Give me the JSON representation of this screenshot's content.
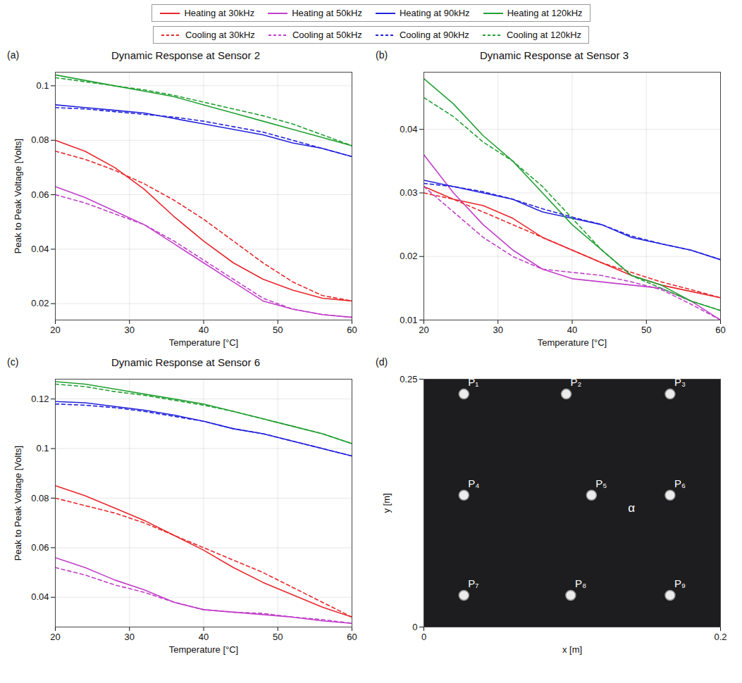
{
  "chart_data": [
    {
      "type": "line",
      "panel": "(a)",
      "title": "Dynamic Response at Sensor 2",
      "legend": "top",
      "xlabel": "Temperature [°C]",
      "ylabel": "Peak to Peak Voltage [Volts]",
      "grid": true,
      "x": [
        20,
        24,
        28,
        32,
        36,
        40,
        44,
        48,
        52,
        56,
        60
      ],
      "xlim": [
        20,
        60
      ],
      "xticks": [
        20,
        30,
        40,
        50,
        60
      ],
      "ylim": [
        0.014,
        0.105
      ],
      "yticks": [
        0.02,
        0.04,
        0.06,
        0.08,
        0.1
      ],
      "series": [
        {
          "name": "Heating at 30kHz",
          "color": "#e8262a",
          "line_style": "solid",
          "values": [
            0.08,
            0.076,
            0.07,
            0.062,
            0.052,
            0.043,
            0.035,
            0.029,
            0.025,
            0.022,
            0.021
          ]
        },
        {
          "name": "Heating at 50kHz",
          "color": "#c13fc9",
          "line_style": "solid",
          "values": [
            0.063,
            0.059,
            0.054,
            0.049,
            0.042,
            0.035,
            0.028,
            0.021,
            0.018,
            0.016,
            0.015
          ]
        },
        {
          "name": "Heating at 90kHz",
          "color": "#2222dd",
          "line_style": "solid",
          "values": [
            0.093,
            0.092,
            0.091,
            0.09,
            0.088,
            0.086,
            0.084,
            0.082,
            0.079,
            0.077,
            0.074
          ]
        },
        {
          "name": "Heating at 120kHz",
          "color": "#22a033",
          "line_style": "solid",
          "values": [
            0.104,
            0.102,
            0.1,
            0.098,
            0.096,
            0.093,
            0.09,
            0.087,
            0.084,
            0.081,
            0.078
          ]
        },
        {
          "name": "Cooling at 30kHz",
          "color": "#e8262a",
          "line_style": "dashed",
          "values": [
            0.076,
            0.073,
            0.069,
            0.064,
            0.058,
            0.051,
            0.043,
            0.035,
            0.028,
            0.023,
            0.021
          ]
        },
        {
          "name": "Cooling at 50kHz",
          "color": "#c13fc9",
          "line_style": "dashed",
          "values": [
            0.06,
            0.057,
            0.053,
            0.049,
            0.043,
            0.036,
            0.029,
            0.022,
            0.018,
            0.016,
            0.015
          ]
        },
        {
          "name": "Cooling at 90kHz",
          "color": "#2222dd",
          "line_style": "dashed",
          "values": [
            0.092,
            0.0915,
            0.0905,
            0.0895,
            0.0885,
            0.087,
            0.085,
            0.083,
            0.08,
            0.077,
            0.074
          ]
        },
        {
          "name": "Cooling at 120kHz",
          "color": "#22a033",
          "line_style": "dashed",
          "values": [
            0.103,
            0.1015,
            0.1,
            0.0985,
            0.0965,
            0.094,
            0.0915,
            0.089,
            0.086,
            0.082,
            0.078
          ]
        }
      ]
    },
    {
      "type": "line",
      "panel": "(b)",
      "title": "Dynamic Response at Sensor 3",
      "xlabel": "Temperature [°C]",
      "grid": true,
      "x": [
        20,
        24,
        28,
        32,
        36,
        40,
        44,
        48,
        52,
        56,
        60
      ],
      "xlim": [
        20,
        60
      ],
      "xticks": [
        20,
        30,
        40,
        50,
        60
      ],
      "ylim": [
        0.01,
        0.049
      ],
      "yticks": [
        0.01,
        0.02,
        0.03,
        0.04
      ],
      "series": [
        {
          "name": "Heating at 30kHz",
          "color": "#e8262a",
          "line_style": "solid",
          "values": [
            0.031,
            0.029,
            0.028,
            0.026,
            0.023,
            0.021,
            0.019,
            0.017,
            0.0155,
            0.0145,
            0.0135
          ]
        },
        {
          "name": "Heating at 50kHz",
          "color": "#c13fc9",
          "line_style": "solid",
          "values": [
            0.036,
            0.03,
            0.025,
            0.021,
            0.018,
            0.0165,
            0.016,
            0.0155,
            0.015,
            0.013,
            0.01
          ]
        },
        {
          "name": "Heating at 90kHz",
          "color": "#2222dd",
          "line_style": "solid",
          "values": [
            0.032,
            0.031,
            0.03,
            0.029,
            0.027,
            0.026,
            0.025,
            0.023,
            0.022,
            0.021,
            0.0195
          ]
        },
        {
          "name": "Heating at 120kHz",
          "color": "#22a033",
          "line_style": "solid",
          "values": [
            0.048,
            0.044,
            0.039,
            0.035,
            0.03,
            0.025,
            0.021,
            0.017,
            0.0155,
            0.013,
            0.0115
          ]
        },
        {
          "name": "Cooling at 30kHz",
          "color": "#e8262a",
          "line_style": "dashed",
          "values": [
            0.03,
            0.029,
            0.027,
            0.025,
            0.023,
            0.021,
            0.019,
            0.0175,
            0.016,
            0.0148,
            0.0135
          ]
        },
        {
          "name": "Cooling at 50kHz",
          "color": "#c13fc9",
          "line_style": "dashed",
          "values": [
            0.031,
            0.027,
            0.023,
            0.02,
            0.018,
            0.0175,
            0.017,
            0.016,
            0.0148,
            0.0125,
            0.01
          ]
        },
        {
          "name": "Cooling at 90kHz",
          "color": "#2222dd",
          "line_style": "dashed",
          "values": [
            0.0315,
            0.031,
            0.0302,
            0.029,
            0.0275,
            0.0262,
            0.025,
            0.0232,
            0.022,
            0.021,
            0.0195
          ]
        },
        {
          "name": "Cooling at 120kHz",
          "color": "#22a033",
          "line_style": "dashed",
          "values": [
            0.045,
            0.042,
            0.038,
            0.035,
            0.031,
            0.026,
            0.021,
            0.017,
            0.015,
            0.013,
            0.0115
          ]
        }
      ]
    },
    {
      "type": "line",
      "panel": "(c)",
      "title": "Dynamic Response at Sensor 6",
      "xlabel": "Temperature [°C]",
      "ylabel": "Peak to Peak Voltage [Volts]",
      "grid": true,
      "x": [
        20,
        24,
        28,
        32,
        36,
        40,
        44,
        48,
        52,
        56,
        60
      ],
      "xlim": [
        20,
        60
      ],
      "xticks": [
        20,
        30,
        40,
        50,
        60
      ],
      "ylim": [
        0.028,
        0.128
      ],
      "yticks": [
        0.04,
        0.06,
        0.08,
        0.1,
        0.12
      ],
      "series": [
        {
          "name": "Heating at 30kHz",
          "color": "#e8262a",
          "line_style": "solid",
          "values": [
            0.085,
            0.081,
            0.076,
            0.071,
            0.065,
            0.059,
            0.052,
            0.046,
            0.041,
            0.036,
            0.032
          ]
        },
        {
          "name": "Heating at 50kHz",
          "color": "#c13fc9",
          "line_style": "solid",
          "values": [
            0.056,
            0.052,
            0.047,
            0.043,
            0.038,
            0.035,
            0.034,
            0.033,
            0.032,
            0.0305,
            0.0295
          ]
        },
        {
          "name": "Heating at 90kHz",
          "color": "#2222dd",
          "line_style": "solid",
          "values": [
            0.119,
            0.1185,
            0.117,
            0.1155,
            0.1135,
            0.111,
            0.108,
            0.106,
            0.103,
            0.1,
            0.097
          ]
        },
        {
          "name": "Heating at 120kHz",
          "color": "#22a033",
          "line_style": "solid",
          "values": [
            0.127,
            0.126,
            0.124,
            0.122,
            0.12,
            0.118,
            0.115,
            0.112,
            0.109,
            0.106,
            0.102
          ]
        },
        {
          "name": "Cooling at 30kHz",
          "color": "#e8262a",
          "line_style": "dashed",
          "values": [
            0.08,
            0.077,
            0.074,
            0.07,
            0.065,
            0.06,
            0.055,
            0.05,
            0.044,
            0.038,
            0.032
          ]
        },
        {
          "name": "Cooling at 50kHz",
          "color": "#c13fc9",
          "line_style": "dashed",
          "values": [
            0.052,
            0.049,
            0.045,
            0.042,
            0.038,
            0.035,
            0.034,
            0.0335,
            0.032,
            0.031,
            0.0295
          ]
        },
        {
          "name": "Cooling at 90kHz",
          "color": "#2222dd",
          "line_style": "dashed",
          "values": [
            0.118,
            0.1175,
            0.1165,
            0.115,
            0.113,
            0.111,
            0.108,
            0.106,
            0.103,
            0.1,
            0.097
          ]
        },
        {
          "name": "Cooling at 120kHz",
          "color": "#22a033",
          "line_style": "dashed",
          "values": [
            0.126,
            0.125,
            0.123,
            0.1215,
            0.1195,
            0.1175,
            0.115,
            0.112,
            0.109,
            0.106,
            0.102
          ]
        }
      ]
    },
    {
      "type": "scatter",
      "panel": "(d)",
      "xlabel": "x [m]",
      "ylabel": "y [m]",
      "grid": false,
      "xlim": [
        0,
        0.2
      ],
      "xticks": [
        0,
        0.2
      ],
      "ylim": [
        0,
        0.25
      ],
      "yticks": [
        0,
        0.25
      ],
      "points": [
        {
          "label": "P₁",
          "x": 0.027,
          "y": 0.235
        },
        {
          "label": "P₂",
          "x": 0.096,
          "y": 0.235
        },
        {
          "label": "P₃",
          "x": 0.166,
          "y": 0.235
        },
        {
          "label": "P₄",
          "x": 0.027,
          "y": 0.133
        },
        {
          "label": "P₅",
          "x": 0.113,
          "y": 0.133
        },
        {
          "label": "P₆",
          "x": 0.166,
          "y": 0.133
        },
        {
          "label": "P₇",
          "x": 0.027,
          "y": 0.032
        },
        {
          "label": "P₈",
          "x": 0.099,
          "y": 0.032
        },
        {
          "label": "P₉",
          "x": 0.166,
          "y": 0.032
        }
      ],
      "annotations": [
        {
          "text": "α",
          "x": 0.14,
          "y": 0.12
        }
      ]
    }
  ]
}
